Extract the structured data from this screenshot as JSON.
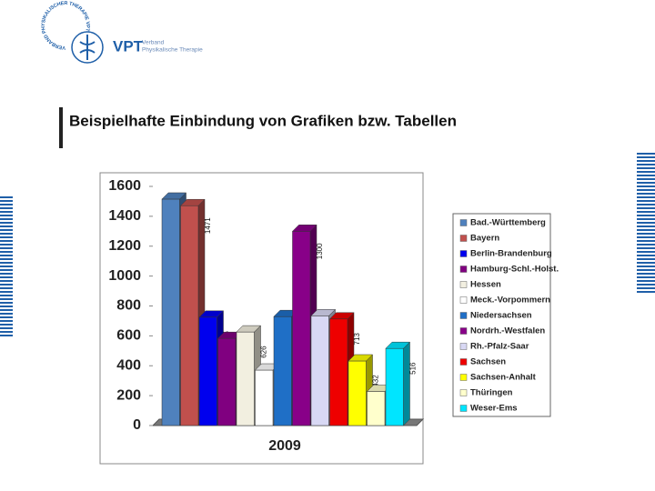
{
  "logo": {
    "ring": "VERBAND PHYSIKALISCHER THERAPIE VPT",
    "name": "VPT",
    "line1": "Verband",
    "line2": "Physikalische Therapie"
  },
  "heading": "Beispielhafte Einbindung von Grafiken bzw. Tabellen",
  "chart_data": {
    "type": "bar",
    "categories": [
      "2009"
    ],
    "series": [
      {
        "name": "Bad.-Württemberg",
        "color": "#4f81bd",
        "values": [
          1515
        ]
      },
      {
        "name": "Bayern",
        "color": "#c0504d",
        "values": [
          1471
        ]
      },
      {
        "name": "Berlin-Brandenburg",
        "color": "#0000ee",
        "values": [
          725
        ]
      },
      {
        "name": "Hamburg-Schl.-Holst.",
        "color": "#800080",
        "values": [
          583
        ]
      },
      {
        "name": "Hessen",
        "color": "#f2efe0",
        "values": [
          626
        ]
      },
      {
        "name": "Meck.-Vorpommern",
        "color": "#ffffff",
        "values": [
          371
        ]
      },
      {
        "name": "Niedersachsen",
        "color": "#1f6fc6",
        "values": [
          729
        ]
      },
      {
        "name": "Nordrh.-Westfalen",
        "color": "#880088",
        "values": [
          1300
        ]
      },
      {
        "name": "Rh.-Pfalz-Saar",
        "color": "#d8d8f4",
        "values": [
          734
        ]
      },
      {
        "name": "Sachsen",
        "color": "#ee0000",
        "values": [
          713
        ]
      },
      {
        "name": "Sachsen-Anhalt",
        "color": "#ffff00",
        "values": [
          432
        ]
      },
      {
        "name": "Thüringen",
        "color": "#ffffcc",
        "values": [
          228
        ]
      },
      {
        "name": "Weser-Ems",
        "color": "#00e5ff",
        "values": [
          516
        ]
      }
    ],
    "ylim": [
      0,
      1600
    ],
    "yticks": [
      0,
      200,
      400,
      600,
      800,
      1000,
      1200,
      1400,
      1600
    ],
    "legend": "right"
  }
}
